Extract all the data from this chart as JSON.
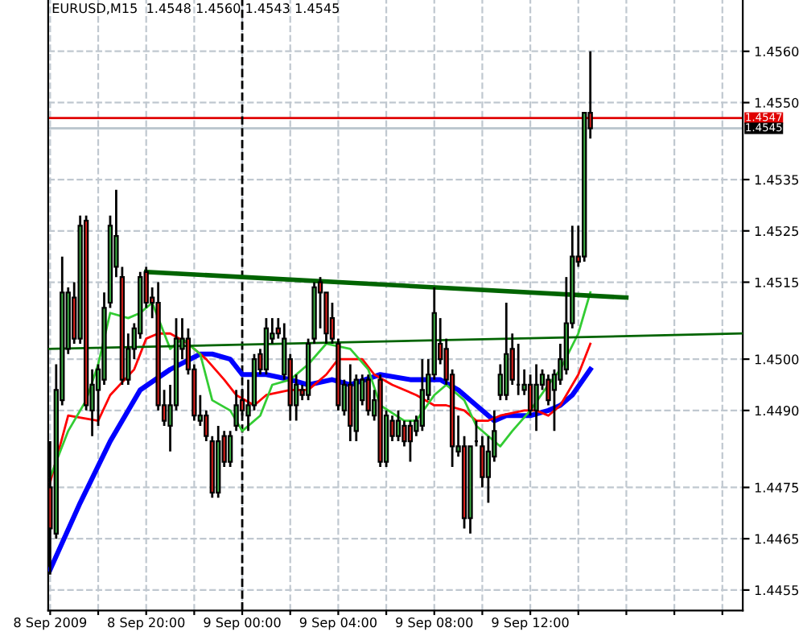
{
  "chart_data": {
    "type": "candlestick",
    "title": "EURUSD,M15  1.4548 1.4560 1.4543 1.4545",
    "xlim": [
      "2009-09-08T15:55",
      "2009-09-09T20:51"
    ],
    "xticks": [
      {
        "value": "2009-09-08T16:00",
        "label": "8 Sep 2009"
      },
      {
        "value": "2009-09-08T18:00",
        "label": null
      },
      {
        "value": "2009-09-08T20:00",
        "label": "8 Sep 20:00"
      },
      {
        "value": "2009-09-08T22:00",
        "label": null
      },
      {
        "value": "2009-09-09T00:00",
        "label": "9 Sep 00:00"
      },
      {
        "value": "2009-09-09T02:00",
        "label": null
      },
      {
        "value": "2009-09-09T04:00",
        "label": "9 Sep 04:00"
      },
      {
        "value": "2009-09-09T06:00",
        "label": null
      },
      {
        "value": "2009-09-09T08:00",
        "label": "9 Sep 08:00"
      },
      {
        "value": "2009-09-09T10:00",
        "label": null
      },
      {
        "value": "2009-09-09T12:00",
        "label": "9 Sep 12:00"
      },
      {
        "value": "2009-09-09T14:00",
        "label": null
      },
      {
        "value": "2009-09-09T16:00",
        "label": null
      },
      {
        "value": "2009-09-09T18:00",
        "label": null
      },
      {
        "value": "2009-09-09T20:00",
        "label": null
      }
    ],
    "ylim": [
      1.4451,
      1.457
    ],
    "yticks": [
      {
        "value": 1.4455,
        "label": "1.4455"
      },
      {
        "value": 1.4465,
        "label": "1.4465"
      },
      {
        "value": 1.4475,
        "label": "1.4475"
      },
      {
        "value": 1.449,
        "label": "1.4490"
      },
      {
        "value": 1.45,
        "label": "1.4500"
      },
      {
        "value": 1.4515,
        "label": "1.4515"
      },
      {
        "value": 1.4525,
        "label": "1.4525"
      },
      {
        "value": 1.4535,
        "label": "1.4535"
      },
      {
        "value": 1.455,
        "label": "1.4550"
      },
      {
        "value": 1.456,
        "label": "1.4560"
      }
    ],
    "grid": true,
    "legend": false,
    "ref_lines": [
      {
        "axis": "y",
        "value": 1.4547,
        "label": "1.4547",
        "color": "#e00000",
        "line_style": "solid"
      },
      {
        "axis": "y",
        "value": 1.4545,
        "label": "1.4545",
        "color": "#b8c4cc",
        "line_style": "solid"
      },
      {
        "axis": "x",
        "value": "2009-09-09T00:00",
        "color": "#000000",
        "line_style": "dashed"
      }
    ],
    "x": [
      "2009-09-08T16:00",
      "2009-09-08T16:15",
      "2009-09-08T16:30",
      "2009-09-08T16:45",
      "2009-09-08T17:00",
      "2009-09-08T17:15",
      "2009-09-08T17:30",
      "2009-09-08T17:45",
      "2009-09-08T18:00",
      "2009-09-08T18:15",
      "2009-09-08T18:30",
      "2009-09-08T18:45",
      "2009-09-08T19:00",
      "2009-09-08T19:15",
      "2009-09-08T19:30",
      "2009-09-08T19:45",
      "2009-09-08T20:00",
      "2009-09-08T20:15",
      "2009-09-08T20:30",
      "2009-09-08T20:45",
      "2009-09-08T21:00",
      "2009-09-08T21:15",
      "2009-09-08T21:30",
      "2009-09-08T21:45",
      "2009-09-08T22:00",
      "2009-09-08T22:15",
      "2009-09-08T22:30",
      "2009-09-08T22:45",
      "2009-09-08T23:00",
      "2009-09-08T23:15",
      "2009-09-08T23:30",
      "2009-09-08T23:45",
      "2009-09-09T00:00",
      "2009-09-09T00:15",
      "2009-09-09T00:30",
      "2009-09-09T00:45",
      "2009-09-09T01:00",
      "2009-09-09T01:15",
      "2009-09-09T01:30",
      "2009-09-09T01:45",
      "2009-09-09T02:00",
      "2009-09-09T02:15",
      "2009-09-09T02:30",
      "2009-09-09T02:45",
      "2009-09-09T03:00",
      "2009-09-09T03:15",
      "2009-09-09T03:30",
      "2009-09-09T03:45",
      "2009-09-09T04:00",
      "2009-09-09T04:15",
      "2009-09-09T04:30",
      "2009-09-09T04:45",
      "2009-09-09T05:00",
      "2009-09-09T05:15",
      "2009-09-09T05:30",
      "2009-09-09T05:45",
      "2009-09-09T06:00",
      "2009-09-09T06:15",
      "2009-09-09T06:30",
      "2009-09-09T06:45",
      "2009-09-09T07:00",
      "2009-09-09T07:15",
      "2009-09-09T07:30",
      "2009-09-09T07:45",
      "2009-09-09T08:00",
      "2009-09-09T08:15",
      "2009-09-09T08:30",
      "2009-09-09T08:45",
      "2009-09-09T09:00",
      "2009-09-09T09:15",
      "2009-09-09T09:30",
      "2009-09-09T09:45",
      "2009-09-09T10:00",
      "2009-09-09T10:15",
      "2009-09-09T10:30",
      "2009-09-09T10:45",
      "2009-09-09T11:00",
      "2009-09-09T11:15",
      "2009-09-09T11:30",
      "2009-09-09T11:45",
      "2009-09-09T12:00",
      "2009-09-09T12:15",
      "2009-09-09T12:30",
      "2009-09-09T12:45",
      "2009-09-09T13:00",
      "2009-09-09T13:15",
      "2009-09-09T13:30",
      "2009-09-09T13:45",
      "2009-09-09T14:00",
      "2009-09-09T14:15",
      "2009-09-09T14:30"
    ],
    "ohlc": [
      [
        1.4475,
        1.4484,
        1.4458,
        1.4467
      ],
      [
        1.4466,
        1.4499,
        1.4465,
        1.4494
      ],
      [
        1.4492,
        1.452,
        1.4491,
        1.4513
      ],
      [
        1.4502,
        1.4514,
        1.4501,
        1.4513
      ],
      [
        1.4512,
        1.4515,
        1.4503,
        1.4504
      ],
      [
        1.4504,
        1.4528,
        1.4503,
        1.4526
      ],
      [
        1.4527,
        1.4528,
        1.449,
        1.4491
      ],
      [
        1.449,
        1.4498,
        1.4485,
        1.4495
      ],
      [
        1.4494,
        1.4499,
        1.4487,
        1.4498
      ],
      [
        1.4496,
        1.4513,
        1.4495,
        1.451
      ],
      [
        1.4511,
        1.4528,
        1.451,
        1.4526
      ],
      [
        1.4518,
        1.4533,
        1.4516,
        1.4524
      ],
      [
        1.4516,
        1.4518,
        1.4495,
        1.4496
      ],
      [
        1.4496,
        1.4505,
        1.4495,
        1.4502
      ],
      [
        1.4502,
        1.4507,
        1.45,
        1.4506
      ],
      [
        1.4505,
        1.4517,
        1.4504,
        1.4516
      ],
      [
        1.4517,
        1.4518,
        1.451,
        1.4511
      ],
      [
        1.4512,
        1.4514,
        1.4508,
        1.4511
      ],
      [
        1.4511,
        1.4515,
        1.449,
        1.4491
      ],
      [
        1.4491,
        1.4494,
        1.4487,
        1.4488
      ],
      [
        1.4487,
        1.4495,
        1.4482,
        1.4491
      ],
      [
        1.4491,
        1.4508,
        1.449,
        1.4504
      ],
      [
        1.4502,
        1.4508,
        1.45,
        1.4504
      ],
      [
        1.4504,
        1.4506,
        1.4497,
        1.4498
      ],
      [
        1.4498,
        1.4499,
        1.4488,
        1.4489
      ],
      [
        1.4488,
        1.4493,
        1.4487,
        1.4489
      ],
      [
        1.4489,
        1.449,
        1.4484,
        1.4485
      ],
      [
        1.4484,
        1.4485,
        1.4473,
        1.4474
      ],
      [
        1.4474,
        1.4487,
        1.4473,
        1.4484
      ],
      [
        1.4485,
        1.4486,
        1.4479,
        1.448
      ],
      [
        1.448,
        1.4486,
        1.4479,
        1.4485
      ],
      [
        1.4487,
        1.4494,
        1.4486,
        1.4491
      ],
      [
        1.4492,
        1.4494,
        1.4489,
        1.449
      ],
      [
        1.4489,
        1.4496,
        1.4486,
        1.4491
      ],
      [
        1.4491,
        1.4501,
        1.449,
        1.45
      ],
      [
        1.4501,
        1.4502,
        1.4497,
        1.4498
      ],
      [
        1.4498,
        1.4508,
        1.4497,
        1.4506
      ],
      [
        1.4504,
        1.4508,
        1.4503,
        1.4505
      ],
      [
        1.4506,
        1.4508,
        1.4504,
        1.4505
      ],
      [
        1.4497,
        1.4507,
        1.4496,
        1.4504
      ],
      [
        1.45,
        1.4501,
        1.4488,
        1.4491
      ],
      [
        1.4491,
        1.4497,
        1.4488,
        1.4495
      ],
      [
        1.4494,
        1.4495,
        1.4492,
        1.4493
      ],
      [
        1.4493,
        1.4504,
        1.4492,
        1.4503
      ],
      [
        1.4504,
        1.4515,
        1.4503,
        1.4514
      ],
      [
        1.4515,
        1.4516,
        1.4506,
        1.4513
      ],
      [
        1.4513,
        1.4513,
        1.4503,
        1.4505
      ],
      [
        1.4508,
        1.4511,
        1.4503,
        1.4504
      ],
      [
        1.4503,
        1.4504,
        1.449,
        1.4491
      ],
      [
        1.449,
        1.4496,
        1.4489,
        1.4495
      ],
      [
        1.4495,
        1.4499,
        1.4484,
        1.4487
      ],
      [
        1.4486,
        1.4497,
        1.4484,
        1.4496
      ],
      [
        1.4492,
        1.4497,
        1.4491,
        1.4496
      ],
      [
        1.4496,
        1.4497,
        1.4489,
        1.449
      ],
      [
        1.4489,
        1.4494,
        1.4488,
        1.4492
      ],
      [
        1.4496,
        1.4497,
        1.4479,
        1.448
      ],
      [
        1.448,
        1.449,
        1.4479,
        1.4489
      ],
      [
        1.4488,
        1.4489,
        1.4484,
        1.4485
      ],
      [
        1.4485,
        1.449,
        1.4484,
        1.4488
      ],
      [
        1.4487,
        1.4488,
        1.4483,
        1.4484
      ],
      [
        1.4487,
        1.4488,
        1.448,
        1.4484
      ],
      [
        1.4486,
        1.4489,
        1.4485,
        1.4488
      ],
      [
        1.4487,
        1.45,
        1.4486,
        1.4494
      ],
      [
        1.4493,
        1.45,
        1.4492,
        1.4497
      ],
      [
        1.4497,
        1.4514,
        1.4496,
        1.4509
      ],
      [
        1.4503,
        1.4508,
        1.4499,
        1.45
      ],
      [
        1.4502,
        1.4504,
        1.4495,
        1.4496
      ],
      [
        1.4497,
        1.4498,
        1.4479,
        1.4483
      ],
      [
        1.4482,
        1.4489,
        1.4481,
        1.4483
      ],
      [
        1.4483,
        1.4485,
        1.4467,
        1.4469
      ],
      [
        1.4469,
        1.4483,
        1.4466,
        1.4483
      ],
      [
        1.4484,
        1.4488,
        1.4483,
        1.4484
      ],
      [
        1.4483,
        1.4485,
        1.4475,
        1.4477
      ],
      [
        1.4477,
        1.4485,
        1.4472,
        1.4482
      ],
      [
        1.4481,
        1.449,
        1.448,
        1.4486
      ],
      [
        1.4493,
        1.4499,
        1.4492,
        1.4497
      ],
      [
        1.4493,
        1.4511,
        1.4492,
        1.4501
      ],
      [
        1.4502,
        1.4505,
        1.4495,
        1.4496
      ],
      [
        1.4495,
        1.4503,
        1.4493,
        1.4495
      ],
      [
        1.4494,
        1.4498,
        1.4493,
        1.4495
      ],
      [
        1.4495,
        1.4497,
        1.4489,
        1.449
      ],
      [
        1.449,
        1.4499,
        1.4486,
        1.4495
      ],
      [
        1.4495,
        1.4498,
        1.4494,
        1.4497
      ],
      [
        1.4496,
        1.4497,
        1.4491,
        1.4492
      ],
      [
        1.4494,
        1.4498,
        1.4486,
        1.4497
      ],
      [
        1.4496,
        1.4503,
        1.4495,
        1.45
      ],
      [
        1.4498,
        1.4516,
        1.4497,
        1.4507
      ],
      [
        1.4507,
        1.4526,
        1.4506,
        1.452
      ],
      [
        1.452,
        1.4526,
        1.4518,
        1.4519
      ],
      [
        1.452,
        1.4548,
        1.4519,
        1.4548
      ],
      [
        1.4548,
        1.456,
        1.4543,
        1.4545
      ]
    ],
    "colors": [
      "#e0201b",
      "#3cb043",
      "#3cb043",
      "#3cb043",
      "#e0201b",
      "#3cb043",
      "#e0201b",
      "#3cb043",
      "#3cb043",
      "#3cb043",
      "#3cb043",
      "#3cb043",
      "#e0201b",
      "#3cb043",
      "#3cb043",
      "#3cb043",
      "#e0201b",
      "#e0201b",
      "#e0201b",
      "#e0201b",
      "#3cb043",
      "#3cb043",
      "#3cb043",
      "#e0201b",
      "#e0201b",
      "#3cb043",
      "#e0201b",
      "#e0201b",
      "#3cb043",
      "#e0201b",
      "#3cb043",
      "#3cb043",
      "#e0201b",
      "#3cb043",
      "#3cb043",
      "#e0201b",
      "#3cb043",
      "#3cb043",
      "#e0201b",
      "#3cb043",
      "#e0201b",
      "#3cb043",
      "#e0201b",
      "#3cb043",
      "#3cb043",
      "#e0201b",
      "#e0201b",
      "#e0201b",
      "#e0201b",
      "#3cb043",
      "#e0201b",
      "#3cb043",
      "#3cb043",
      "#e0201b",
      "#3cb043",
      "#e0201b",
      "#3cb043",
      "#e0201b",
      "#3cb043",
      "#e0201b",
      "#e0201b",
      "#3cb043",
      "#3cb043",
      "#3cb043",
      "#3cb043",
      "#e0201b",
      "#e0201b",
      "#e0201b",
      "#3cb043",
      "#e0201b",
      "#3cb043",
      "#000000",
      "#e0201b",
      "#3cb043",
      "#3cb043",
      "#3cb043",
      "#3cb043",
      "#e0201b",
      "#000000",
      "#3cb043",
      "#e0201b",
      "#3cb043",
      "#3cb043",
      "#e0201b",
      "#3cb043",
      "#3cb043",
      "#3cb043",
      "#3cb043",
      "#e0201b",
      "#3cb043",
      "#e0201b"
    ],
    "series": [
      {
        "type": "line",
        "color": "#0000ff",
        "x": [
          "2009-09-08T16:00",
          "2009-09-08T17:15",
          "2009-09-08T18:30",
          "2009-09-08T19:45",
          "2009-09-08T21:00",
          "2009-09-08T22:15",
          "2009-09-08T22:45",
          "2009-09-08T23:30",
          "2009-09-09T00:00",
          "2009-09-09T01:00",
          "2009-09-09T02:00",
          "2009-09-09T02:45",
          "2009-09-09T03:45",
          "2009-09-09T04:30",
          "2009-09-09T05:45",
          "2009-09-09T07:00",
          "2009-09-09T08:15",
          "2009-09-09T09:00",
          "2009-09-09T09:45",
          "2009-09-09T10:30",
          "2009-09-09T11:00",
          "2009-09-09T12:00",
          "2009-09-09T12:45",
          "2009-09-09T13:15",
          "2009-09-09T13:45",
          "2009-09-09T14:30"
        ],
        "values": [
          1.4459,
          1.4472,
          1.4484,
          1.4494,
          1.4498,
          1.4501,
          1.4501,
          1.45,
          1.4497,
          1.4497,
          1.4496,
          1.4495,
          1.4496,
          1.4495,
          1.4497,
          1.4496,
          1.4496,
          1.4494,
          1.4491,
          1.4488,
          1.4489,
          1.4489,
          1.449,
          1.4491,
          1.4493,
          1.4498
        ]
      },
      {
        "type": "line",
        "color": "#ff0000",
        "x": [
          "2009-09-08T16:00",
          "2009-09-08T16:45",
          "2009-09-08T18:00",
          "2009-09-08T18:30",
          "2009-09-08T19:30",
          "2009-09-08T20:00",
          "2009-09-08T20:30",
          "2009-09-08T21:00",
          "2009-09-08T21:45",
          "2009-09-08T22:30",
          "2009-09-08T23:15",
          "2009-09-08T23:45",
          "2009-09-09T00:30",
          "2009-09-09T01:00",
          "2009-09-09T02:00",
          "2009-09-09T02:45",
          "2009-09-09T03:30",
          "2009-09-09T04:00",
          "2009-09-09T05:00",
          "2009-09-09T05:30",
          "2009-09-09T06:15",
          "2009-09-09T07:15",
          "2009-09-09T08:00",
          "2009-09-09T08:30",
          "2009-09-09T09:15",
          "2009-09-09T09:45",
          "2009-09-09T10:15",
          "2009-09-09T10:45",
          "2009-09-09T11:45",
          "2009-09-09T12:15",
          "2009-09-09T12:45",
          "2009-09-09T13:15",
          "2009-09-09T14:00",
          "2009-09-09T14:30"
        ],
        "values": [
          1.4476,
          1.4489,
          1.4488,
          1.4493,
          1.4498,
          1.4504,
          1.4505,
          1.4505,
          1.4503,
          1.45,
          1.4496,
          1.4493,
          1.4491,
          1.4493,
          1.4494,
          1.4494,
          1.4497,
          1.45,
          1.45,
          1.4497,
          1.4495,
          1.4493,
          1.4491,
          1.4491,
          1.449,
          1.4488,
          1.4488,
          1.4489,
          1.449,
          1.449,
          1.4489,
          1.4491,
          1.4497,
          1.4503
        ]
      },
      {
        "type": "line",
        "color": "#33cc33",
        "x": [
          "2009-09-08T16:00",
          "2009-09-08T16:45",
          "2009-09-08T17:30",
          "2009-09-08T18:00",
          "2009-09-08T18:30",
          "2009-09-08T19:15",
          "2009-09-08T19:45",
          "2009-09-08T20:15",
          "2009-09-08T21:00",
          "2009-09-08T21:30",
          "2009-09-08T22:15",
          "2009-09-08T22:45",
          "2009-09-08T23:30",
          "2009-09-09T00:00",
          "2009-09-09T00:45",
          "2009-09-09T01:15",
          "2009-09-09T02:00",
          "2009-09-09T02:45",
          "2009-09-09T03:30",
          "2009-09-09T04:30",
          "2009-09-09T05:15",
          "2009-09-09T05:45",
          "2009-09-09T06:45",
          "2009-09-09T07:15",
          "2009-09-09T08:00",
          "2009-09-09T08:30",
          "2009-09-09T09:15",
          "2009-09-09T09:45",
          "2009-09-09T10:45",
          "2009-09-09T11:15",
          "2009-09-09T12:00",
          "2009-09-09T12:45",
          "2009-09-09T13:15",
          "2009-09-09T14:00",
          "2009-09-09T14:30"
        ],
        "values": [
          1.4477,
          1.4486,
          1.4492,
          1.4499,
          1.4509,
          1.4508,
          1.4509,
          1.4511,
          1.4502,
          1.4504,
          1.4501,
          1.4492,
          1.449,
          1.4486,
          1.4489,
          1.4495,
          1.4496,
          1.4499,
          1.4503,
          1.4502,
          1.4498,
          1.4491,
          1.4488,
          1.4488,
          1.4493,
          1.4495,
          1.4492,
          1.4487,
          1.4483,
          1.4486,
          1.449,
          1.4495,
          1.4498,
          1.4505,
          1.4513
        ]
      },
      {
        "type": "line",
        "color": "#006400",
        "x": [
          "2009-09-08T15:55",
          "2009-09-09T20:51"
        ],
        "values": [
          1.4502,
          1.4505
        ]
      },
      {
        "type": "line",
        "color": "#006400",
        "x": [
          "2009-09-08T20:00",
          "2009-09-09T16:00"
        ],
        "values": [
          1.4517,
          1.4512
        ]
      }
    ]
  }
}
